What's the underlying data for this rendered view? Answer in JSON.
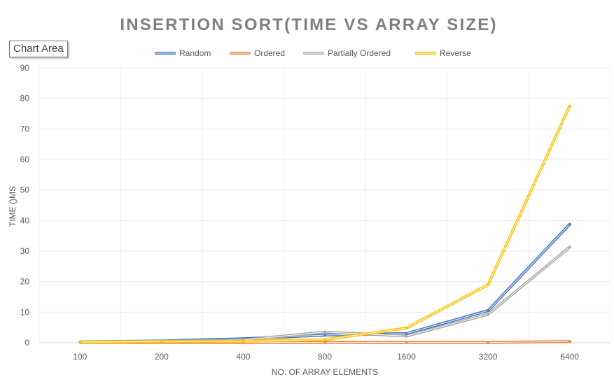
{
  "tooltip": {
    "label": "Chart Area"
  },
  "chart_data": {
    "type": "line",
    "title": "INSERTION SORT(TIME VS ARRAY SIZE)",
    "xlabel": "NO. OF ARRAY ELEMENTS",
    "ylabel": "TIME ()MS",
    "categories": [
      "100",
      "200",
      "400",
      "800",
      "1600",
      "3200",
      "6400"
    ],
    "ylim": [
      0,
      90
    ],
    "yticks": [
      "0",
      "10",
      "20",
      "30",
      "40",
      "50",
      "60",
      "70",
      "80",
      "90"
    ],
    "grid": true,
    "legend_position": "top",
    "series": [
      {
        "name": "Random",
        "color": "#4472C4",
        "values": [
          0.3,
          0.6,
          1.3,
          2.5,
          3.0,
          10.5,
          38.8
        ]
      },
      {
        "name": "Ordered",
        "color": "#ED7D31",
        "values": [
          0.1,
          0.1,
          0.1,
          0.1,
          0.1,
          0.1,
          0.4
        ]
      },
      {
        "name": "Partially Ordered",
        "color": "#A5A5A5",
        "values": [
          0.3,
          0.5,
          0.9,
          3.5,
          2.2,
          9.3,
          31.3
        ]
      },
      {
        "name": "Reverse",
        "color": "#FFC000",
        "values": [
          0.2,
          0.4,
          0.5,
          1.0,
          4.8,
          19.0,
          77.5
        ]
      }
    ]
  }
}
